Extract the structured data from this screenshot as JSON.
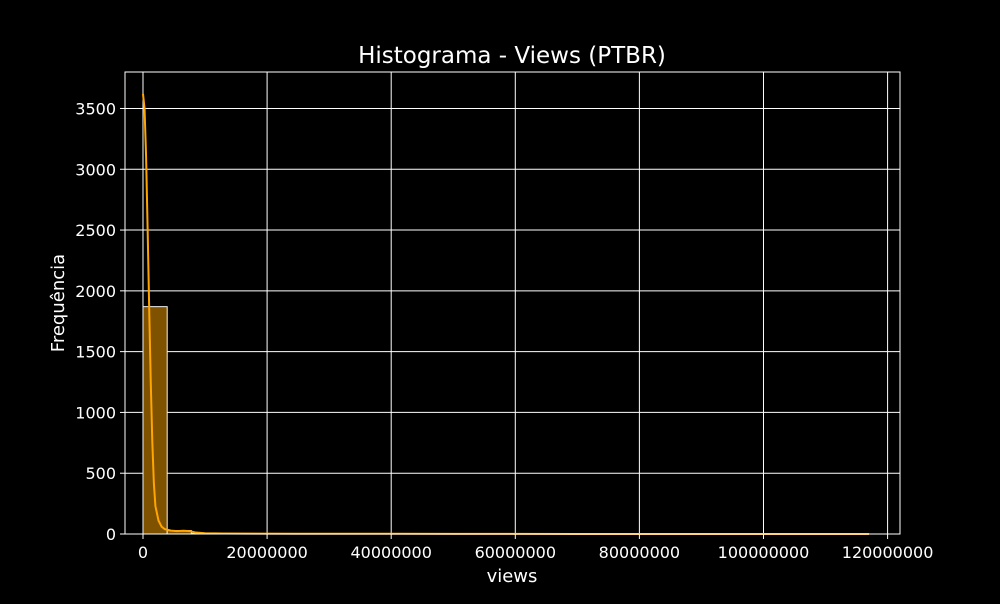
{
  "chart_data": {
    "type": "bar",
    "title": "Histograma - Views (PTBR)",
    "xlabel": "views",
    "ylabel": "Frequência",
    "xlim": [
      -2900000,
      122000000
    ],
    "ylim": [
      0,
      3800
    ],
    "xticks": [
      0,
      20000000,
      40000000,
      60000000,
      80000000,
      100000000,
      120000000
    ],
    "xtick_labels": [
      "0",
      "20000000",
      "40000000",
      "60000000",
      "80000000",
      "100000000",
      "120000000"
    ],
    "yticks": [
      0,
      500,
      1000,
      1500,
      2000,
      2500,
      3000,
      3500
    ],
    "ytick_labels": [
      "0",
      "500",
      "1000",
      "1500",
      "2000",
      "2500",
      "3000",
      "3500"
    ],
    "grid": true,
    "bar_color": "#7f5200",
    "bar_edge_color": "#f2f2f2",
    "kde_color": "#ffa500",
    "bins": [
      {
        "x0": 0,
        "x1": 3900000,
        "count": 1870
      },
      {
        "x0": 3900000,
        "x1": 7800000,
        "count": 28
      },
      {
        "x0": 7800000,
        "x1": 11700000,
        "count": 6
      },
      {
        "x0": 11700000,
        "x1": 15600000,
        "count": 3
      },
      {
        "x0": 15600000,
        "x1": 19500000,
        "count": 2
      },
      {
        "x0": 19500000,
        "x1": 23400000,
        "count": 2
      },
      {
        "x0": 23400000,
        "x1": 27300000,
        "count": 1
      },
      {
        "x0": 27300000,
        "x1": 31200000,
        "count": 1
      },
      {
        "x0": 31200000,
        "x1": 35100000,
        "count": 1
      },
      {
        "x0": 35100000,
        "x1": 39000000,
        "count": 1
      },
      {
        "x0": 39000000,
        "x1": 42900000,
        "count": 1
      },
      {
        "x0": 42900000,
        "x1": 46800000,
        "count": 0
      },
      {
        "x0": 46800000,
        "x1": 50700000,
        "count": 0
      },
      {
        "x0": 50700000,
        "x1": 54600000,
        "count": 0
      },
      {
        "x0": 54600000,
        "x1": 58500000,
        "count": 0
      },
      {
        "x0": 58500000,
        "x1": 62400000,
        "count": 0
      },
      {
        "x0": 62400000,
        "x1": 66300000,
        "count": 0
      },
      {
        "x0": 66300000,
        "x1": 70200000,
        "count": 0
      },
      {
        "x0": 70200000,
        "x1": 74100000,
        "count": 0
      },
      {
        "x0": 74100000,
        "x1": 78000000,
        "count": 0
      },
      {
        "x0": 78000000,
        "x1": 81900000,
        "count": 0
      },
      {
        "x0": 81900000,
        "x1": 85800000,
        "count": 0
      },
      {
        "x0": 85800000,
        "x1": 89700000,
        "count": 0
      },
      {
        "x0": 89700000,
        "x1": 93600000,
        "count": 0
      },
      {
        "x0": 93600000,
        "x1": 97500000,
        "count": 0
      },
      {
        "x0": 97500000,
        "x1": 101400000,
        "count": 0
      },
      {
        "x0": 101400000,
        "x1": 105300000,
        "count": 0
      },
      {
        "x0": 105300000,
        "x1": 109200000,
        "count": 0
      },
      {
        "x0": 109200000,
        "x1": 113100000,
        "count": 0
      },
      {
        "x0": 113100000,
        "x1": 117000000,
        "count": 1
      }
    ],
    "kde": [
      {
        "x": 0,
        "y": 3620
      },
      {
        "x": 250000,
        "y": 3500
      },
      {
        "x": 500000,
        "y": 3100
      },
      {
        "x": 750000,
        "y": 2500
      },
      {
        "x": 1000000,
        "y": 1850
      },
      {
        "x": 1250000,
        "y": 1250
      },
      {
        "x": 1500000,
        "y": 760
      },
      {
        "x": 1750000,
        "y": 420
      },
      {
        "x": 2000000,
        "y": 230
      },
      {
        "x": 2500000,
        "y": 110
      },
      {
        "x": 3000000,
        "y": 60
      },
      {
        "x": 3500000,
        "y": 40
      },
      {
        "x": 4500000,
        "y": 28
      },
      {
        "x": 5500000,
        "y": 24
      },
      {
        "x": 6500000,
        "y": 27
      },
      {
        "x": 7500000,
        "y": 24
      },
      {
        "x": 8500000,
        "y": 12
      },
      {
        "x": 10000000,
        "y": 6
      },
      {
        "x": 13000000,
        "y": 4
      },
      {
        "x": 18000000,
        "y": 3
      },
      {
        "x": 25000000,
        "y": 2
      },
      {
        "x": 35000000,
        "y": 2
      },
      {
        "x": 40000000,
        "y": 2
      },
      {
        "x": 50000000,
        "y": 1
      },
      {
        "x": 70000000,
        "y": 0.5
      },
      {
        "x": 90000000,
        "y": 0.5
      },
      {
        "x": 110000000,
        "y": 0.5
      },
      {
        "x": 117000000,
        "y": 0.5
      }
    ]
  }
}
